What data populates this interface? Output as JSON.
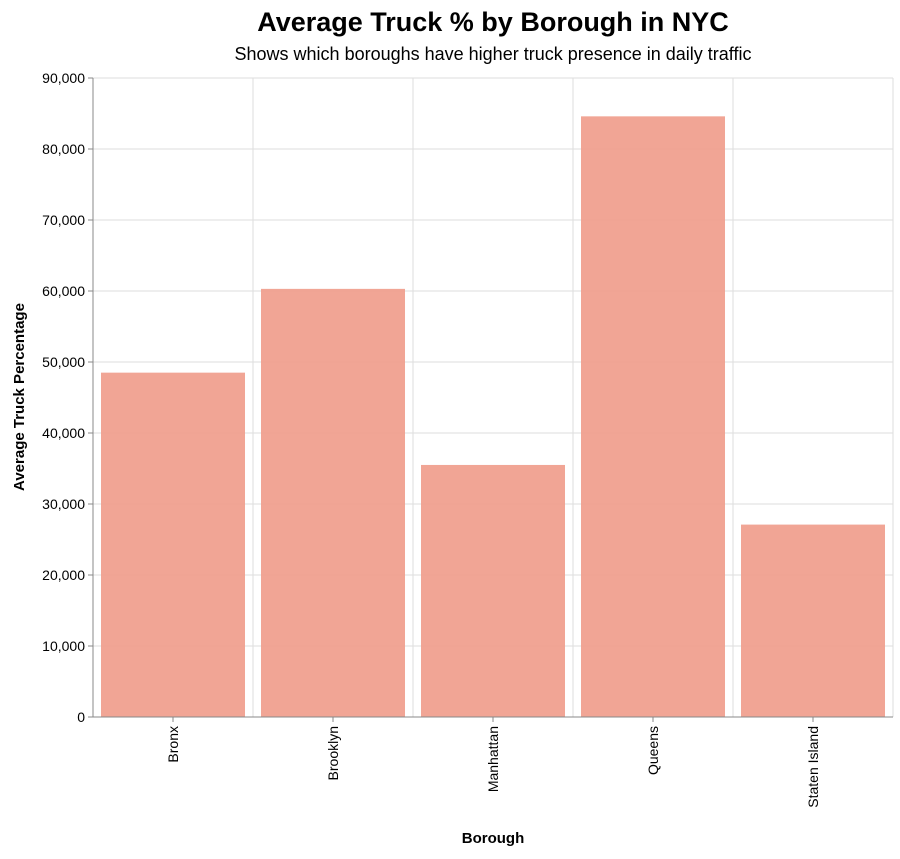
{
  "chart_data": {
    "type": "bar",
    "title": "Average Truck % by Borough in NYC",
    "subtitle": "Shows which boroughs have higher truck presence in daily traffic",
    "xlabel": "Borough",
    "ylabel": "Average Truck Percentage",
    "categories": [
      "Bronx",
      "Brooklyn",
      "Manhattan",
      "Queens",
      "Staten Island"
    ],
    "values": [
      48500,
      60300,
      35500,
      84600,
      27100
    ],
    "ylim": [
      0,
      90000
    ],
    "yticks": [
      0,
      10000,
      20000,
      30000,
      40000,
      50000,
      60000,
      70000,
      80000,
      90000
    ],
    "ytick_labels": [
      "0",
      "10,000",
      "20,000",
      "30,000",
      "40,000",
      "50,000",
      "60,000",
      "70,000",
      "80,000",
      "90,000"
    ],
    "grid": true,
    "bar_color": "#f0a08f"
  }
}
